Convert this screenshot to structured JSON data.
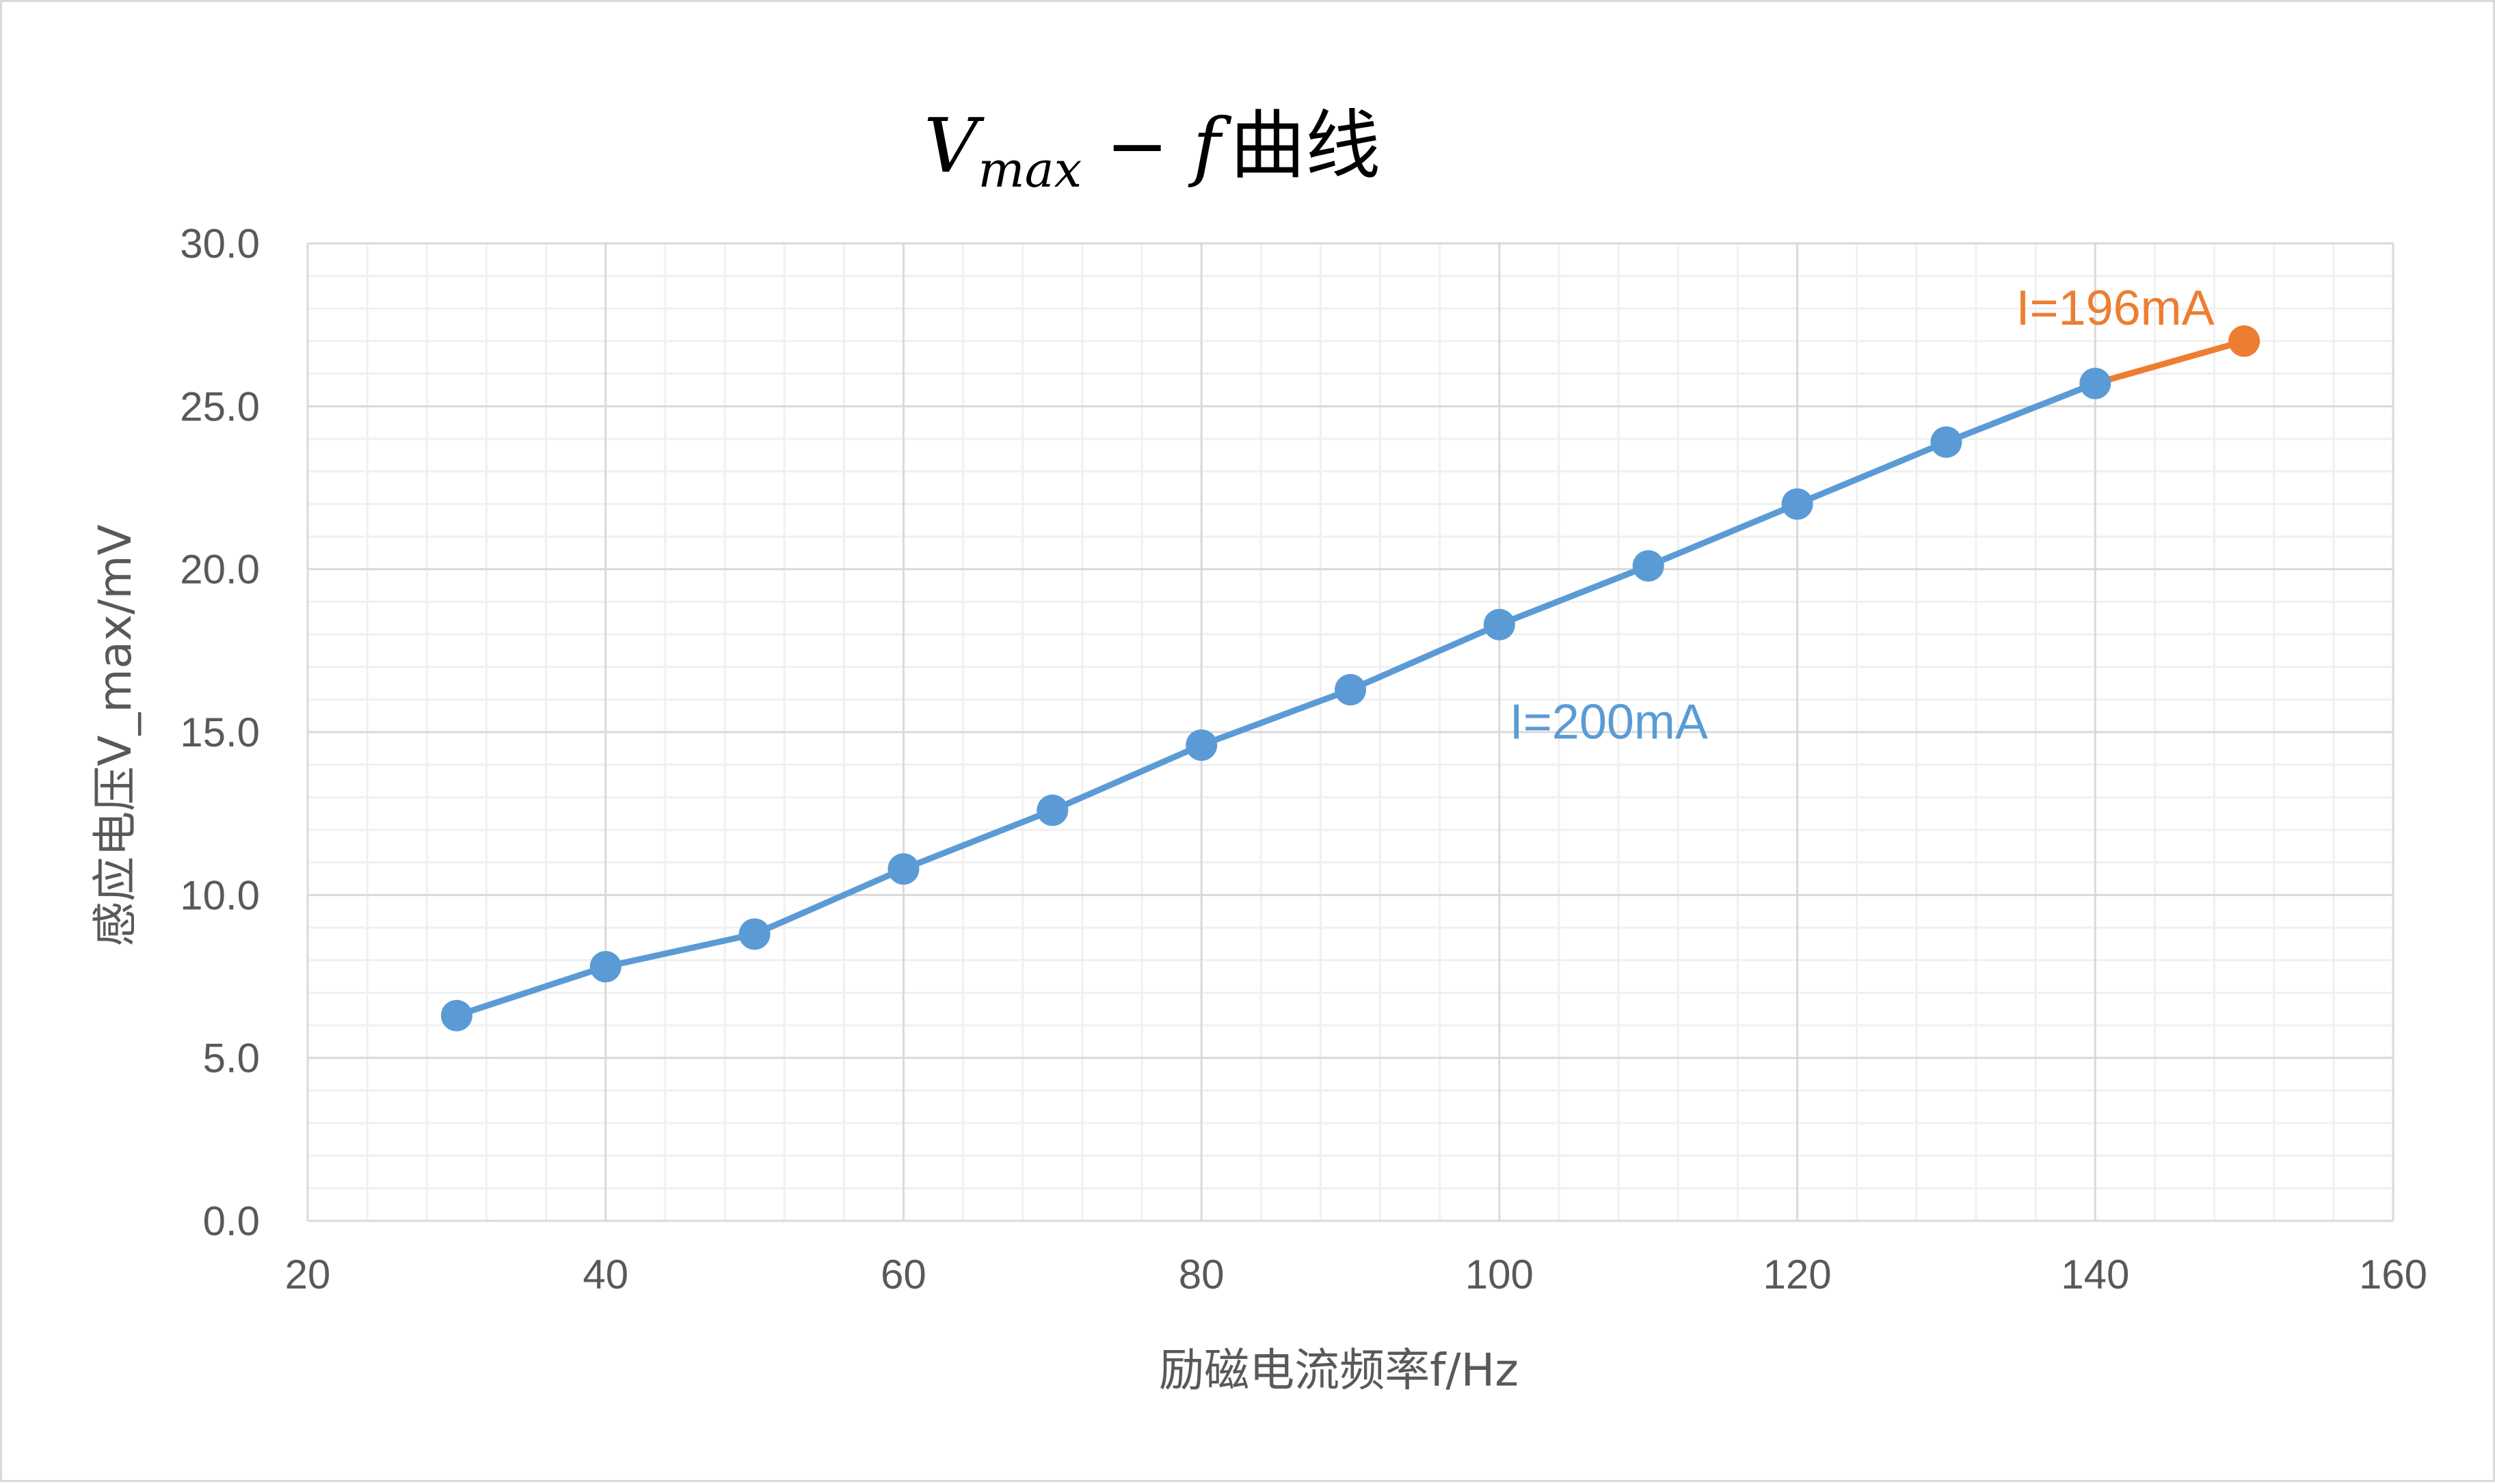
{
  "chart_data": {
    "type": "line",
    "title": {
      "var": "V",
      "sub": "max",
      "rest": " − f",
      "suffix": "曲线"
    },
    "xlabel": "励磁电流频率f/Hz",
    "ylabel": "感应电压V_max/mV",
    "xlim": [
      20,
      160
    ],
    "ylim": [
      0,
      30
    ],
    "x_ticks": [
      20,
      40,
      60,
      80,
      100,
      120,
      140,
      160
    ],
    "y_ticks": [
      0.0,
      5.0,
      10.0,
      15.0,
      20.0,
      25.0,
      30.0
    ],
    "x_minor_step": 4,
    "y_minor_step": 1,
    "grid": true,
    "series": [
      {
        "name": "I=200mA",
        "color": "#5b9bd5",
        "x": [
          30,
          40,
          50,
          60,
          70,
          80,
          90,
          100,
          110,
          120,
          130,
          140
        ],
        "y": [
          6.3,
          7.8,
          8.8,
          10.8,
          12.6,
          14.6,
          16.3,
          18.3,
          20.1,
          22.0,
          23.9,
          25.7
        ]
      },
      {
        "name": "I=196mA",
        "color": "#ed7d31",
        "x": [
          140,
          150
        ],
        "y": [
          25.7,
          27.0
        ]
      }
    ]
  }
}
